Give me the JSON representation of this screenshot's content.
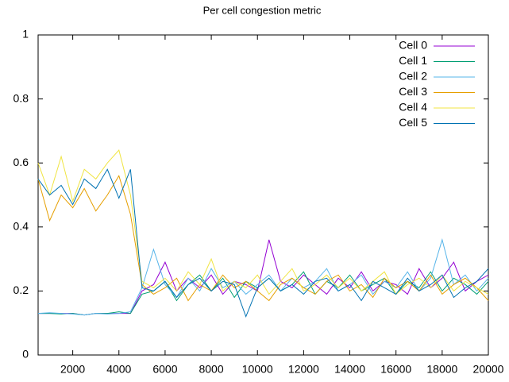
{
  "chart_data": {
    "type": "line",
    "title": "Per cell congestion metric",
    "x": [
      500,
      1000,
      1500,
      2000,
      2500,
      3000,
      3500,
      4000,
      4500,
      5000,
      5500,
      6000,
      6500,
      7000,
      7500,
      8000,
      8500,
      9000,
      9500,
      10000,
      10500,
      11000,
      11500,
      12000,
      12500,
      13000,
      13500,
      14000,
      14500,
      15000,
      15500,
      16000,
      16500,
      17000,
      17500,
      18000,
      18500,
      19000,
      19500,
      20000
    ],
    "series": [
      {
        "name": "Cell 0",
        "color": "#9400d3",
        "values": [
          0.13,
          0.13,
          0.13,
          0.13,
          0.125,
          0.13,
          0.13,
          0.13,
          0.13,
          0.2,
          0.22,
          0.29,
          0.2,
          0.24,
          0.21,
          0.25,
          0.19,
          0.23,
          0.22,
          0.2,
          0.36,
          0.23,
          0.21,
          0.25,
          0.22,
          0.19,
          0.24,
          0.21,
          0.26,
          0.2,
          0.23,
          0.22,
          0.19,
          0.27,
          0.21,
          0.24,
          0.29,
          0.2,
          0.23,
          0.25
        ]
      },
      {
        "name": "Cell 1",
        "color": "#009e73",
        "values": [
          0.13,
          0.13,
          0.128,
          0.13,
          0.125,
          0.13,
          0.13,
          0.135,
          0.13,
          0.19,
          0.2,
          0.23,
          0.17,
          0.22,
          0.25,
          0.2,
          0.24,
          0.18,
          0.23,
          0.21,
          0.24,
          0.2,
          0.22,
          0.26,
          0.19,
          0.23,
          0.21,
          0.25,
          0.2,
          0.22,
          0.24,
          0.19,
          0.23,
          0.21,
          0.26,
          0.2,
          0.24,
          0.22,
          0.19,
          0.23
        ]
      },
      {
        "name": "Cell 2",
        "color": "#56b4e9",
        "values": [
          0.13,
          0.132,
          0.13,
          0.128,
          0.125,
          0.13,
          0.128,
          0.13,
          0.135,
          0.21,
          0.33,
          0.22,
          0.18,
          0.24,
          0.2,
          0.27,
          0.21,
          0.23,
          0.19,
          0.22,
          0.25,
          0.2,
          0.24,
          0.21,
          0.23,
          0.27,
          0.2,
          0.22,
          0.25,
          0.19,
          0.23,
          0.21,
          0.26,
          0.2,
          0.24,
          0.36,
          0.22,
          0.25,
          0.2,
          0.24
        ]
      },
      {
        "name": "Cell 3",
        "color": "#e69f00",
        "values": [
          0.55,
          0.42,
          0.5,
          0.46,
          0.52,
          0.45,
          0.5,
          0.56,
          0.44,
          0.22,
          0.19,
          0.21,
          0.24,
          0.17,
          0.22,
          0.2,
          0.25,
          0.21,
          0.23,
          0.2,
          0.17,
          0.22,
          0.24,
          0.21,
          0.19,
          0.23,
          0.25,
          0.2,
          0.22,
          0.18,
          0.24,
          0.21,
          0.23,
          0.2,
          0.25,
          0.19,
          0.22,
          0.24,
          0.21,
          0.17
        ]
      },
      {
        "name": "Cell 4",
        "color": "#f0e442",
        "values": [
          0.6,
          0.5,
          0.62,
          0.48,
          0.58,
          0.55,
          0.6,
          0.64,
          0.5,
          0.23,
          0.21,
          0.24,
          0.2,
          0.26,
          0.22,
          0.3,
          0.2,
          0.23,
          0.21,
          0.25,
          0.19,
          0.23,
          0.27,
          0.2,
          0.22,
          0.25,
          0.21,
          0.24,
          0.2,
          0.23,
          0.26,
          0.19,
          0.22,
          0.24,
          0.21,
          0.25,
          0.2,
          0.23,
          0.21,
          0.19
        ]
      },
      {
        "name": "Cell 5",
        "color": "#0072b2",
        "values": [
          0.55,
          0.5,
          0.53,
          0.47,
          0.55,
          0.52,
          0.58,
          0.49,
          0.58,
          0.21,
          0.2,
          0.23,
          0.18,
          0.22,
          0.24,
          0.2,
          0.23,
          0.22,
          0.12,
          0.21,
          0.24,
          0.2,
          0.22,
          0.19,
          0.23,
          0.24,
          0.2,
          0.22,
          0.17,
          0.23,
          0.21,
          0.19,
          0.24,
          0.2,
          0.22,
          0.25,
          0.18,
          0.21,
          0.23,
          0.27
        ]
      }
    ],
    "xlim": [
      500,
      20000
    ],
    "xticks": [
      2000,
      4000,
      6000,
      8000,
      10000,
      12000,
      14000,
      16000,
      18000,
      20000
    ],
    "ylim": [
      0,
      1
    ],
    "yticks": [
      0,
      0.2,
      0.4,
      0.6,
      0.8,
      1
    ],
    "legend": "top right",
    "grid": false
  }
}
